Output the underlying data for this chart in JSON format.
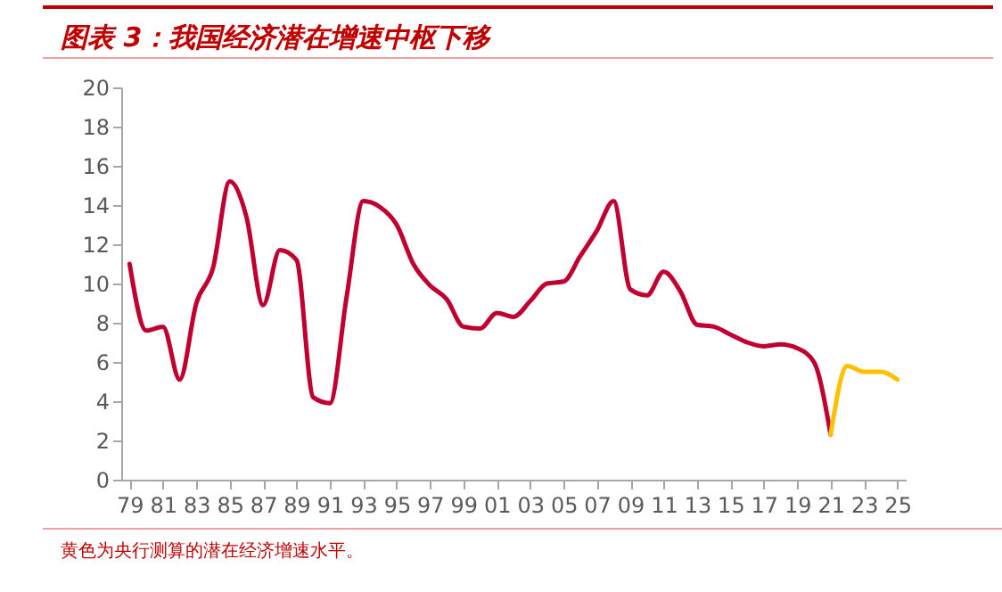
{
  "chart_data": {
    "type": "line",
    "title": "图表 3：我国经济潜在增速中枢下移",
    "categories": [
      "79",
      null,
      "81",
      null,
      "83",
      null,
      "85",
      null,
      "87",
      null,
      "89",
      null,
      "91",
      null,
      "93",
      null,
      "95",
      null,
      "97",
      null,
      "99",
      null,
      "01",
      null,
      "03",
      null,
      "05",
      null,
      "07",
      null,
      "09",
      null,
      "11",
      null,
      "13",
      null,
      "15",
      null,
      "17",
      null,
      "19",
      null,
      "21",
      null,
      "23",
      null,
      "25"
    ],
    "series": [
      {
        "color": "#c00030",
        "values": [
          11.0,
          7.6,
          7.8,
          5.1,
          9.0,
          10.8,
          15.2,
          13.4,
          8.9,
          11.7,
          11.2,
          4.2,
          3.9,
          9.3,
          14.2,
          13.9,
          13.0,
          11.0,
          9.9,
          9.2,
          7.8,
          7.7,
          8.5,
          8.3,
          9.1,
          10.0,
          10.1,
          11.4,
          12.7,
          14.2,
          9.7,
          9.4,
          10.6,
          9.6,
          7.9,
          7.8,
          7.4,
          7.0,
          6.8,
          6.9,
          6.7,
          6.0,
          2.3,
          null,
          null,
          null,
          null
        ]
      },
      {
        "color": "#ffc000",
        "values": [
          null,
          null,
          null,
          null,
          null,
          null,
          null,
          null,
          null,
          null,
          null,
          null,
          null,
          null,
          null,
          null,
          null,
          null,
          null,
          null,
          null,
          null,
          null,
          null,
          null,
          null,
          null,
          null,
          null,
          null,
          null,
          null,
          null,
          null,
          null,
          null,
          null,
          null,
          null,
          null,
          null,
          null,
          2.3,
          5.8,
          5.5,
          5.5,
          5.1
        ]
      }
    ],
    "ylim": [
      0,
      20
    ],
    "yticks": [
      0,
      2,
      4,
      6,
      8,
      10,
      12,
      14,
      16,
      18,
      20
    ],
    "annotations": [
      "黄色为央行测算的潜在经济增速水平。"
    ]
  }
}
